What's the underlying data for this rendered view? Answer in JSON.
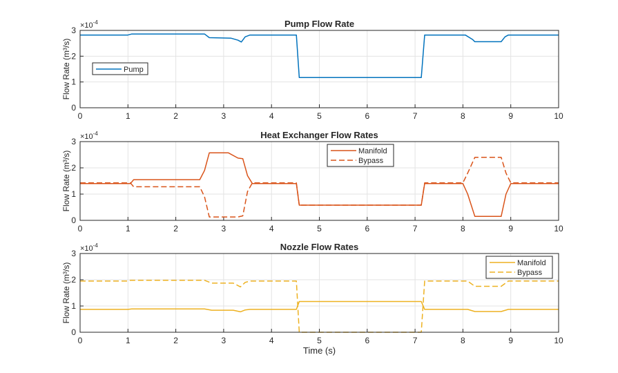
{
  "chart_data": [
    {
      "type": "line",
      "title": "Pump Flow Rate",
      "xlabel": "",
      "ylabel": "Flow  Rate  (m³/s)",
      "exponent": "×10",
      "exponent_power": "-4",
      "xlim": [
        0,
        10
      ],
      "ylim": [
        0,
        3
      ],
      "xticks": [
        "0",
        "1",
        "2",
        "3",
        "4",
        "5",
        "6",
        "7",
        "8",
        "9",
        "10"
      ],
      "yticks": [
        "0",
        "1",
        "2",
        "3"
      ],
      "grid": true,
      "legend_position": "left",
      "series": [
        {
          "name": "Pump",
          "color": "#0072BD",
          "style": "solid",
          "x": [
            0,
            1,
            1.08,
            2.6,
            2.7,
            3.15,
            3.3,
            3.37,
            3.45,
            3.55,
            4.52,
            4.58,
            7.13,
            7.2,
            8.05,
            8.2,
            8.25,
            8.8,
            8.88,
            8.95,
            10
          ],
          "y": [
            2.82,
            2.82,
            2.86,
            2.86,
            2.72,
            2.7,
            2.62,
            2.55,
            2.75,
            2.82,
            2.82,
            1.17,
            1.17,
            2.82,
            2.82,
            2.65,
            2.56,
            2.56,
            2.75,
            2.82,
            2.82
          ]
        }
      ]
    },
    {
      "type": "line",
      "title": "Heat Exchanger Flow Rates",
      "xlabel": "",
      "ylabel": "Flow  Rate  (m³/s)",
      "exponent": "×10",
      "exponent_power": "-4",
      "xlim": [
        0,
        10
      ],
      "ylim": [
        0,
        3
      ],
      "xticks": [
        "0",
        "1",
        "2",
        "3",
        "4",
        "5",
        "6",
        "7",
        "8",
        "9",
        "10"
      ],
      "yticks": [
        "0",
        "1",
        "2",
        "3"
      ],
      "grid": true,
      "legend_position": "top-center",
      "series": [
        {
          "name": "Manifold",
          "color": "#D95319",
          "style": "solid",
          "x": [
            0,
            1.05,
            1.12,
            2.5,
            2.6,
            2.7,
            3.1,
            3.3,
            3.4,
            3.5,
            3.6,
            4.52,
            4.58,
            7.13,
            7.2,
            8.0,
            8.1,
            8.25,
            8.8,
            8.9,
            9.0,
            10
          ],
          "y": [
            1.4,
            1.4,
            1.55,
            1.55,
            1.9,
            2.57,
            2.57,
            2.37,
            2.35,
            1.7,
            1.4,
            1.4,
            0.58,
            0.58,
            1.4,
            1.4,
            1.0,
            0.15,
            0.15,
            1.0,
            1.4,
            1.4
          ]
        },
        {
          "name": "Bypass",
          "color": "#D95319",
          "style": "dashed",
          "x": [
            0,
            1.05,
            1.12,
            2.5,
            2.6,
            2.7,
            3.3,
            3.4,
            3.5,
            3.6,
            4.52,
            4.58,
            7.13,
            7.2,
            8.0,
            8.1,
            8.25,
            8.8,
            8.9,
            9.0,
            10
          ],
          "y": [
            1.43,
            1.43,
            1.28,
            1.28,
            0.9,
            0.13,
            0.13,
            0.17,
            1.1,
            1.43,
            1.43,
            0.58,
            0.58,
            1.43,
            1.43,
            1.8,
            2.4,
            2.4,
            1.8,
            1.43,
            1.43
          ]
        }
      ]
    },
    {
      "type": "line",
      "title": "Nozzle Flow Rates",
      "xlabel": "Time (s)",
      "ylabel": "Flow  Rate  (m³/s)",
      "exponent": "×10",
      "exponent_power": "-4",
      "xlim": [
        0,
        10
      ],
      "ylim": [
        0,
        3
      ],
      "xticks": [
        "0",
        "1",
        "2",
        "3",
        "4",
        "5",
        "6",
        "7",
        "8",
        "9",
        "10"
      ],
      "yticks": [
        "0",
        "1",
        "2",
        "3"
      ],
      "grid": true,
      "legend_position": "top-right",
      "series": [
        {
          "name": "Manifold",
          "color": "#EDB120",
          "style": "solid",
          "x": [
            0,
            1,
            1.08,
            2.6,
            2.75,
            3.2,
            3.35,
            3.45,
            3.55,
            4.52,
            4.58,
            7.13,
            7.2,
            8.1,
            8.25,
            8.8,
            8.95,
            10
          ],
          "y": [
            0.87,
            0.87,
            0.89,
            0.89,
            0.84,
            0.84,
            0.78,
            0.85,
            0.87,
            0.87,
            1.17,
            1.17,
            0.87,
            0.87,
            0.79,
            0.79,
            0.87,
            0.87
          ]
        },
        {
          "name": "Bypass",
          "color": "#EDB120",
          "style": "dashed",
          "x": [
            0,
            1,
            1.05,
            2.6,
            2.75,
            3.2,
            3.35,
            3.45,
            3.55,
            4.52,
            4.58,
            7.13,
            7.2,
            8.1,
            8.25,
            8.8,
            8.95,
            10
          ],
          "y": [
            1.95,
            1.95,
            1.98,
            1.98,
            1.87,
            1.87,
            1.73,
            1.9,
            1.95,
            1.95,
            0,
            0,
            1.95,
            1.95,
            1.75,
            1.75,
            1.95,
            1.95
          ]
        }
      ]
    }
  ]
}
